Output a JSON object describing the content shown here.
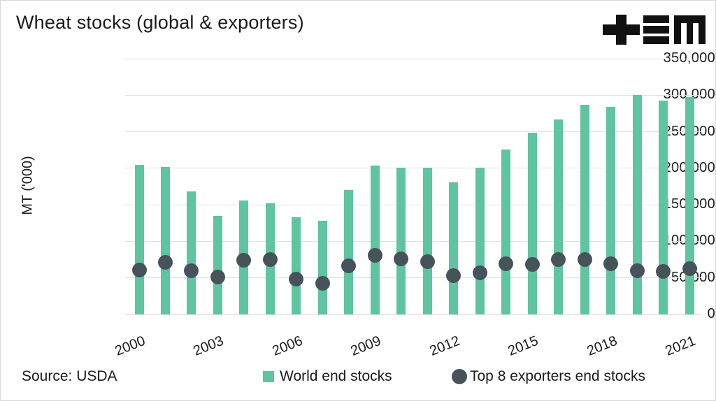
{
  "header": {
    "title": "Wheat stocks (global & exporters)"
  },
  "logo": {
    "icons": [
      "plus-icon",
      "triple-bar-icon",
      "letter-m-icon"
    ],
    "color": "#111111"
  },
  "source": "Source: USDA",
  "legend": {
    "world": "World end stocks",
    "top8": "Top 8 exporters end stocks"
  },
  "colors": {
    "bar": "#5fc4a0",
    "dot": "#46535a",
    "grid": "#e1e1e1",
    "text": "#1b1b1b",
    "background": "#ffffff"
  },
  "chart_data": {
    "type": "bar",
    "title": "Wheat stocks (global & exporters)",
    "xlabel": "",
    "ylabel": "MT ('000)",
    "ylim": [
      0,
      350000
    ],
    "grid": true,
    "legend_position": "bottom",
    "ytick_values": [
      0,
      50000,
      100000,
      150000,
      200000,
      250000,
      300000,
      350000
    ],
    "ytick_labels": [
      "0",
      "50,000",
      "100,000",
      "150,000",
      "200,000",
      "250,000",
      "300,000",
      "350,000"
    ],
    "x": [
      2000,
      2001,
      2002,
      2003,
      2004,
      2005,
      2006,
      2007,
      2008,
      2009,
      2010,
      2011,
      2012,
      2013,
      2014,
      2015,
      2016,
      2017,
      2018,
      2019,
      2020,
      2021
    ],
    "xtick_labels": [
      "2000",
      "2003",
      "2006",
      "2009",
      "2012",
      "2015",
      "2018",
      "2021"
    ],
    "series": [
      {
        "name": "World end stocks",
        "type": "bar",
        "values": [
          205000,
          202000,
          168000,
          135000,
          156000,
          152000,
          133000,
          128000,
          170000,
          204000,
          201000,
          201000,
          181000,
          201000,
          226000,
          249000,
          267000,
          287000,
          284000,
          300000,
          293000,
          297000
        ]
      },
      {
        "name": "Top 8 exporters end stocks",
        "type": "scatter",
        "values": [
          61000,
          71000,
          60000,
          51000,
          74000,
          75000,
          48000,
          43000,
          66000,
          81000,
          76000,
          72000,
          53000,
          57000,
          69000,
          68000,
          75000,
          75000,
          69000,
          60000,
          59000,
          63000
        ]
      }
    ]
  }
}
